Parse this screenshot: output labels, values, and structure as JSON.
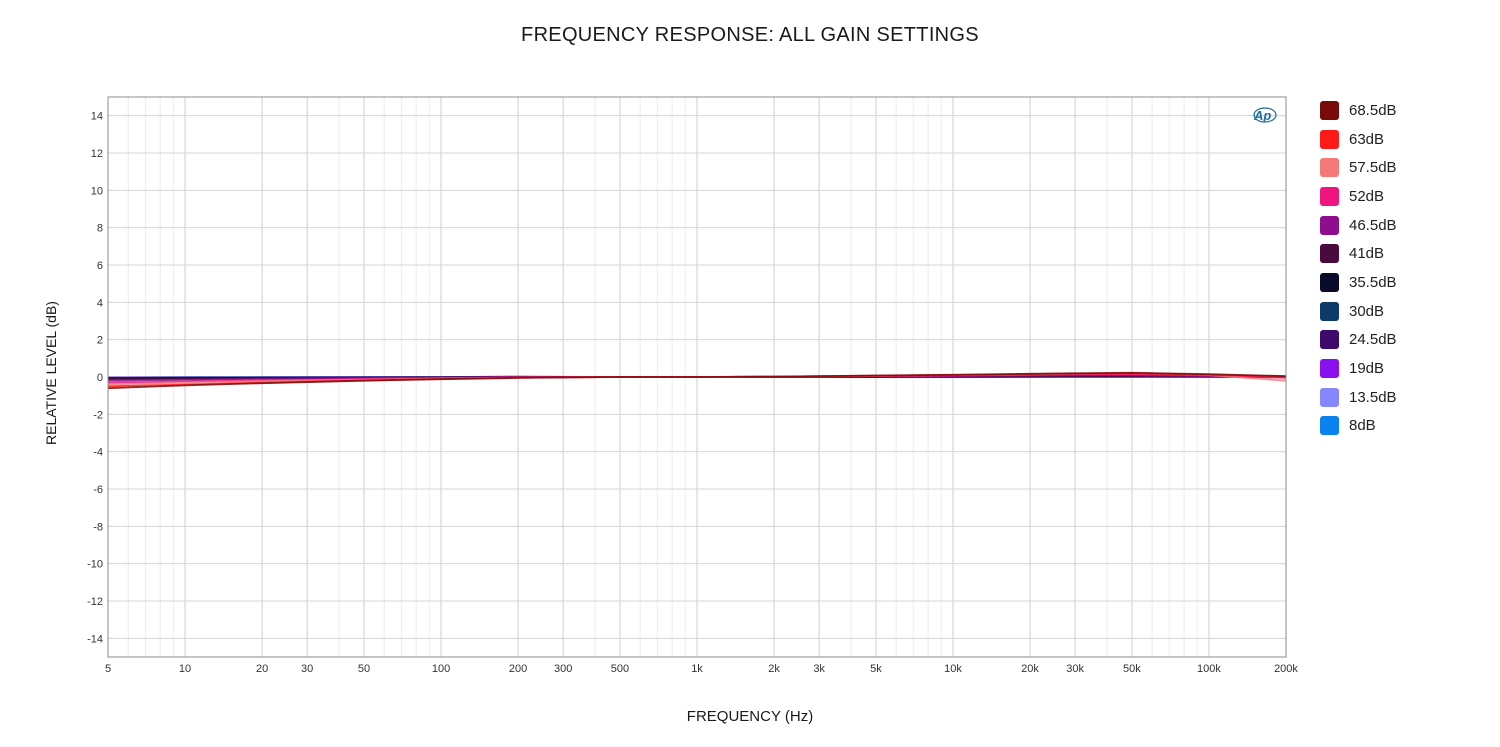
{
  "chart_data": {
    "type": "line",
    "title": "FREQUENCY RESPONSE: ALL GAIN SETTINGS",
    "xlabel": "FREQUENCY (Hz)",
    "ylabel": "RELATIVE LEVEL (dB)",
    "x_scale": "log",
    "xlim": [
      5,
      200000
    ],
    "ylim": [
      -15,
      15
    ],
    "grid": true,
    "legend_position": "right",
    "x_ticks": [
      5,
      10,
      20,
      30,
      50,
      100,
      200,
      300,
      500,
      1000,
      2000,
      3000,
      5000,
      10000,
      20000,
      30000,
      50000,
      100000,
      200000
    ],
    "x_tick_labels": [
      "5",
      "10",
      "20",
      "30",
      "50",
      "100",
      "200",
      "300",
      "500",
      "1k",
      "2k",
      "3k",
      "5k",
      "10k",
      "20k",
      "30k",
      "50k",
      "100k",
      "200k"
    ],
    "y_ticks": [
      14,
      12,
      10,
      8,
      6,
      4,
      2,
      0,
      -2,
      -4,
      -6,
      -8,
      -10,
      -12,
      -14
    ],
    "y_tick_labels": [
      "14",
      "12",
      "10",
      "8",
      "6",
      "4",
      "2",
      "0",
      "-2",
      "-4",
      "-6",
      "-8",
      "-10",
      "-12",
      "-14"
    ],
    "logo_text": "Ap",
    "x": [
      5,
      10,
      20,
      50,
      100,
      200,
      500,
      1000,
      2000,
      5000,
      10000,
      20000,
      30000,
      50000,
      100000,
      200000
    ],
    "series": [
      {
        "name": "68.5dB",
        "color": "#7a0b0b",
        "values": [
          -0.6,
          -0.45,
          -0.33,
          -0.2,
          -0.12,
          -0.05,
          0.0,
          0.0,
          0.02,
          0.08,
          0.12,
          0.17,
          0.2,
          0.22,
          0.15,
          0.05
        ]
      },
      {
        "name": "63dB",
        "color": "#ff1a1a",
        "values": [
          -0.5,
          -0.4,
          -0.3,
          -0.18,
          -0.1,
          -0.04,
          0.0,
          0.0,
          0.02,
          0.07,
          0.11,
          0.16,
          0.19,
          0.2,
          0.12,
          0.03
        ]
      },
      {
        "name": "57.5dB",
        "color": "#f47a7a",
        "values": [
          -0.4,
          -0.3,
          -0.22,
          -0.14,
          -0.08,
          -0.03,
          0.0,
          0.0,
          0.02,
          0.06,
          0.1,
          0.15,
          0.18,
          0.24,
          0.1,
          -0.2
        ]
      },
      {
        "name": "52dB",
        "color": "#f0157e",
        "values": [
          -0.3,
          -0.24,
          -0.18,
          -0.1,
          -0.06,
          -0.02,
          0.0,
          0.0,
          0.01,
          0.05,
          0.08,
          0.12,
          0.14,
          0.15,
          0.08,
          -0.05
        ]
      },
      {
        "name": "46.5dB",
        "color": "#8e0e8e",
        "values": [
          -0.2,
          -0.15,
          -0.1,
          -0.06,
          -0.04,
          0.0,
          0.0,
          0.0,
          0.01,
          0.03,
          0.05,
          0.07,
          0.08,
          0.08,
          0.05,
          0.02
        ]
      },
      {
        "name": "41dB",
        "color": "#4a0a40",
        "values": [
          -0.12,
          -0.1,
          -0.07,
          -0.04,
          -0.02,
          0.0,
          0.0,
          0.0,
          0.0,
          0.02,
          0.03,
          0.05,
          0.06,
          0.06,
          0.04,
          0.02
        ]
      },
      {
        "name": "35.5dB",
        "color": "#0a0a2a",
        "values": [
          -0.08,
          -0.06,
          -0.05,
          -0.03,
          -0.02,
          0.0,
          0.0,
          0.0,
          0.0,
          0.01,
          0.02,
          0.03,
          0.04,
          0.04,
          0.03,
          0.02
        ]
      },
      {
        "name": "30dB",
        "color": "#0d3a66",
        "values": [
          -0.05,
          -0.04,
          -0.03,
          -0.02,
          -0.01,
          0.0,
          0.0,
          0.0,
          0.0,
          0.01,
          0.02,
          0.02,
          0.03,
          0.03,
          0.02,
          0.01
        ]
      },
      {
        "name": "24.5dB",
        "color": "#3d0a6b",
        "values": [
          -0.04,
          -0.03,
          -0.02,
          -0.02,
          -0.01,
          0.0,
          0.0,
          0.0,
          0.0,
          0.01,
          0.01,
          0.02,
          0.02,
          0.02,
          0.02,
          0.01
        ]
      },
      {
        "name": "19dB",
        "color": "#8a10ee",
        "values": [
          -0.03,
          -0.02,
          -0.02,
          -0.01,
          -0.01,
          0.02,
          0.0,
          0.0,
          0.0,
          0.0,
          0.01,
          0.01,
          0.02,
          0.02,
          0.01,
          0.01
        ]
      },
      {
        "name": "13.5dB",
        "color": "#8686ff",
        "values": [
          -0.02,
          -0.02,
          -0.01,
          -0.01,
          0.0,
          0.01,
          0.0,
          0.0,
          0.0,
          0.0,
          0.01,
          0.01,
          0.01,
          0.01,
          0.01,
          0.0
        ]
      },
      {
        "name": "8dB",
        "color": "#0a82f0",
        "values": [
          -0.02,
          -0.01,
          -0.01,
          0.0,
          0.0,
          0.01,
          0.0,
          0.0,
          0.0,
          0.0,
          0.0,
          0.01,
          0.01,
          0.01,
          0.01,
          0.0
        ]
      }
    ]
  }
}
